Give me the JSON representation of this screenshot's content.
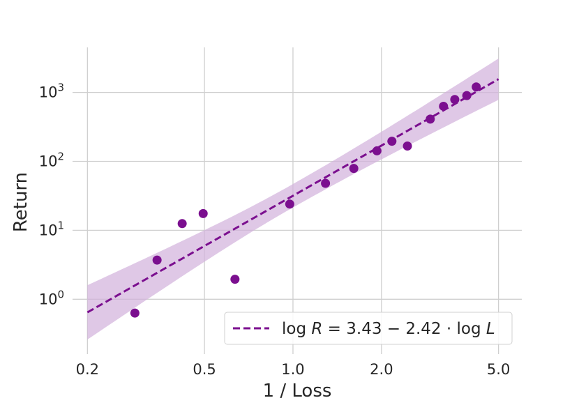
{
  "chart_data": {
    "type": "scatter",
    "title": "",
    "xlabel": "1 / Loss",
    "ylabel": "Return",
    "xscale": "log",
    "yscale": "log",
    "xlim": [
      0.178,
      6.0
    ],
    "ylim": [
      0.16,
      4500
    ],
    "xticks": [
      0.2,
      0.5,
      1.0,
      2.0,
      5.0
    ],
    "xtick_labels": [
      "0.2",
      "0.5",
      "1.0",
      "2.0",
      "5.0"
    ],
    "yticks": [
      1,
      10,
      100,
      1000
    ],
    "ytick_labels": [
      {
        "base": "10",
        "exp": "0"
      },
      {
        "base": "10",
        "exp": "1"
      },
      {
        "base": "10",
        "exp": "2"
      },
      {
        "base": "10",
        "exp": "3"
      }
    ],
    "grid": true,
    "colors": {
      "series": "#7b0f8f",
      "band": "#d2b0dc",
      "grid": "#cfcfcf"
    },
    "scatter": {
      "x": [
        0.29,
        0.345,
        0.42,
        0.495,
        0.635,
        0.975,
        1.29,
        1.61,
        1.93,
        2.17,
        2.45,
        2.93,
        3.25,
        3.55,
        3.9,
        4.2
      ],
      "y": [
        0.63,
        3.7,
        12.5,
        17.5,
        1.95,
        24,
        48,
        79,
        142,
        196,
        167,
        410,
        630,
        790,
        900,
        1200
      ]
    },
    "fit": {
      "x_range": [
        0.2,
        5.0
      ],
      "intercept": 3.43,
      "slope": 2.42,
      "band_lower_at_ends": [
        0.26,
        780
      ],
      "band_upper_at_ends": [
        1.6,
        3100
      ]
    },
    "legend": {
      "position": "bottom-right",
      "label_parts": {
        "lhs": "log ",
        "var_r": "R",
        "eq": " = 3.43 − 2.42 · log ",
        "var_l": "L"
      }
    }
  }
}
